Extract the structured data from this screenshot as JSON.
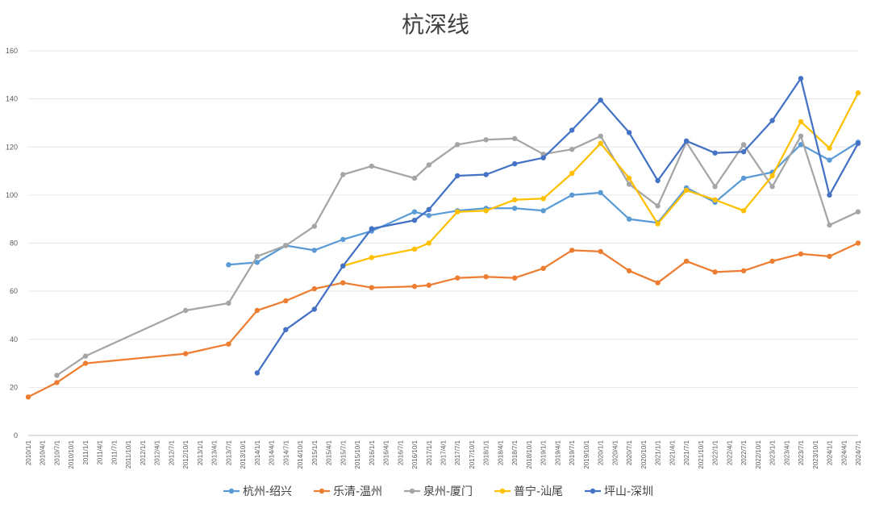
{
  "chart_data": {
    "type": "line",
    "title": "杭深线",
    "xlabel": "",
    "ylabel": "",
    "ylim": [
      0,
      160
    ],
    "yticks": [
      "0",
      "20",
      "40",
      "60",
      "80",
      "100",
      "120",
      "140",
      "160"
    ],
    "grid": true,
    "legend_position": "bottom",
    "categories": [
      "2010/1/1",
      "2010/4/1",
      "2010/7/1",
      "2010/10/1",
      "2011/1/1",
      "2011/4/1",
      "2011/7/1",
      "2011/10/1",
      "2012/1/1",
      "2012/4/1",
      "2012/7/1",
      "2012/10/1",
      "2013/1/1",
      "2013/4/1",
      "2013/7/1",
      "2013/10/1",
      "2014/1/1",
      "2014/4/1",
      "2014/7/1",
      "2014/10/1",
      "2015/1/1",
      "2015/4/1",
      "2015/7/1",
      "2015/10/1",
      "2016/1/1",
      "2016/4/1",
      "2016/7/1",
      "2016/10/1",
      "2017/1/1",
      "2017/4/1",
      "2017/7/1",
      "2017/10/1",
      "2018/1/1",
      "2018/4/1",
      "2018/7/1",
      "2018/10/1",
      "2019/1/1",
      "2019/4/1",
      "2019/7/1",
      "2019/10/1",
      "2020/1/1",
      "2020/4/1",
      "2020/7/1",
      "2020/10/1",
      "2021/1/1",
      "2021/4/1",
      "2021/7/1",
      "2021/10/1",
      "2022/1/1",
      "2022/4/1",
      "2022/7/1",
      "2022/10/1",
      "2023/1/1",
      "2023/4/1",
      "2023/7/1",
      "2023/10/1",
      "2024/1/1",
      "2024/4/1",
      "2024/7/1"
    ],
    "series": [
      {
        "name": "杭州-绍兴",
        "color": "#5B9BD5",
        "points": [
          [
            "2013/7/1",
            71
          ],
          [
            "2014/1/1",
            72
          ],
          [
            "2014/7/1",
            79
          ],
          [
            "2015/1/1",
            77
          ],
          [
            "2015/7/1",
            81.5
          ],
          [
            "2016/1/1",
            85
          ],
          [
            "2016/10/1",
            93
          ],
          [
            "2017/1/1",
            91.5
          ],
          [
            "2017/7/1",
            93.5
          ],
          [
            "2018/1/1",
            94.5
          ],
          [
            "2018/7/1",
            94.5
          ],
          [
            "2019/1/1",
            93.5
          ],
          [
            "2019/7/1",
            100
          ],
          [
            "2020/1/1",
            101
          ],
          [
            "2020/7/1",
            90
          ],
          [
            "2021/1/1",
            88.5
          ],
          [
            "2021/7/1",
            103
          ],
          [
            "2022/1/1",
            97
          ],
          [
            "2022/7/1",
            107
          ],
          [
            "2023/1/1",
            109.5
          ],
          [
            "2023/7/1",
            121
          ],
          [
            "2024/1/1",
            114.5
          ],
          [
            "2024/7/1",
            122
          ]
        ]
      },
      {
        "name": "乐清-温州",
        "color": "#ED7D31",
        "points": [
          [
            "2010/1/1",
            16
          ],
          [
            "2010/7/1",
            22
          ],
          [
            "2011/1/1",
            30
          ],
          [
            "2012/10/1",
            34
          ],
          [
            "2013/7/1",
            38
          ],
          [
            "2014/1/1",
            52
          ],
          [
            "2014/7/1",
            56
          ],
          [
            "2015/1/1",
            61
          ],
          [
            "2015/7/1",
            63.5
          ],
          [
            "2016/1/1",
            61.5
          ],
          [
            "2016/10/1",
            62
          ],
          [
            "2017/1/1",
            62.5
          ],
          [
            "2017/7/1",
            65.5
          ],
          [
            "2018/1/1",
            66
          ],
          [
            "2018/7/1",
            65.5
          ],
          [
            "2019/1/1",
            69.5
          ],
          [
            "2019/7/1",
            77
          ],
          [
            "2020/1/1",
            76.5
          ],
          [
            "2020/7/1",
            68.5
          ],
          [
            "2021/1/1",
            63.5
          ],
          [
            "2021/7/1",
            72.5
          ],
          [
            "2022/1/1",
            68
          ],
          [
            "2022/7/1",
            68.5
          ],
          [
            "2023/1/1",
            72.5
          ],
          [
            "2023/7/1",
            75.5
          ],
          [
            "2024/1/1",
            74.5
          ],
          [
            "2024/7/1",
            80
          ]
        ]
      },
      {
        "name": "泉州-厦门",
        "color": "#A5A5A5",
        "points": [
          [
            "2010/7/1",
            25
          ],
          [
            "2011/1/1",
            33
          ],
          [
            "2012/10/1",
            52
          ],
          [
            "2013/7/1",
            55
          ],
          [
            "2014/1/1",
            74.5
          ],
          [
            "2014/7/1",
            79
          ],
          [
            "2015/1/1",
            87
          ],
          [
            "2015/7/1",
            108.5
          ],
          [
            "2016/1/1",
            112
          ],
          [
            "2016/10/1",
            107
          ],
          [
            "2017/1/1",
            112.5
          ],
          [
            "2017/7/1",
            121
          ],
          [
            "2018/1/1",
            123
          ],
          [
            "2018/7/1",
            123.5
          ],
          [
            "2019/1/1",
            117
          ],
          [
            "2019/7/1",
            119
          ],
          [
            "2020/1/1",
            124.5
          ],
          [
            "2020/7/1",
            104.5
          ],
          [
            "2021/1/1",
            95.5
          ],
          [
            "2021/7/1",
            122
          ],
          [
            "2022/1/1",
            103.5
          ],
          [
            "2022/7/1",
            121
          ],
          [
            "2023/1/1",
            103.5
          ],
          [
            "2023/7/1",
            124.5
          ],
          [
            "2024/1/1",
            87.5
          ],
          [
            "2024/7/1",
            93
          ]
        ]
      },
      {
        "name": "普宁-汕尾",
        "color": "#FFC000",
        "points": [
          [
            "2015/7/1",
            70.5
          ],
          [
            "2016/1/1",
            74
          ],
          [
            "2016/10/1",
            77.5
          ],
          [
            "2017/1/1",
            80
          ],
          [
            "2017/7/1",
            93
          ],
          [
            "2018/1/1",
            93.5
          ],
          [
            "2018/7/1",
            98
          ],
          [
            "2019/1/1",
            98.5
          ],
          [
            "2019/7/1",
            109
          ],
          [
            "2020/1/1",
            121.5
          ],
          [
            "2020/7/1",
            107
          ],
          [
            "2021/1/1",
            88
          ],
          [
            "2021/7/1",
            102
          ],
          [
            "2022/1/1",
            98
          ],
          [
            "2022/7/1",
            93.5
          ],
          [
            "2023/1/1",
            108
          ],
          [
            "2023/7/1",
            130.5
          ],
          [
            "2024/1/1",
            119.5
          ],
          [
            "2024/7/1",
            142.5
          ]
        ]
      },
      {
        "name": "坪山-深圳",
        "color": "#4472C4",
        "points": [
          [
            "2014/1/1",
            26
          ],
          [
            "2014/7/1",
            44
          ],
          [
            "2015/1/1",
            52.5
          ],
          [
            "2015/7/1",
            70.5
          ],
          [
            "2016/1/1",
            86
          ],
          [
            "2016/10/1",
            89.5
          ],
          [
            "2017/1/1",
            94
          ],
          [
            "2017/7/1",
            108
          ],
          [
            "2018/1/1",
            108.5
          ],
          [
            "2018/7/1",
            113
          ],
          [
            "2019/1/1",
            115.5
          ],
          [
            "2019/7/1",
            127
          ],
          [
            "2020/1/1",
            139.5
          ],
          [
            "2020/7/1",
            126
          ],
          [
            "2021/1/1",
            106
          ],
          [
            "2021/7/1",
            122.5
          ],
          [
            "2022/1/1",
            117.5
          ],
          [
            "2022/7/1",
            118
          ],
          [
            "2023/1/1",
            131
          ],
          [
            "2023/7/1",
            148.5
          ],
          [
            "2024/1/1",
            100
          ],
          [
            "2024/7/1",
            121.5
          ]
        ]
      }
    ]
  }
}
